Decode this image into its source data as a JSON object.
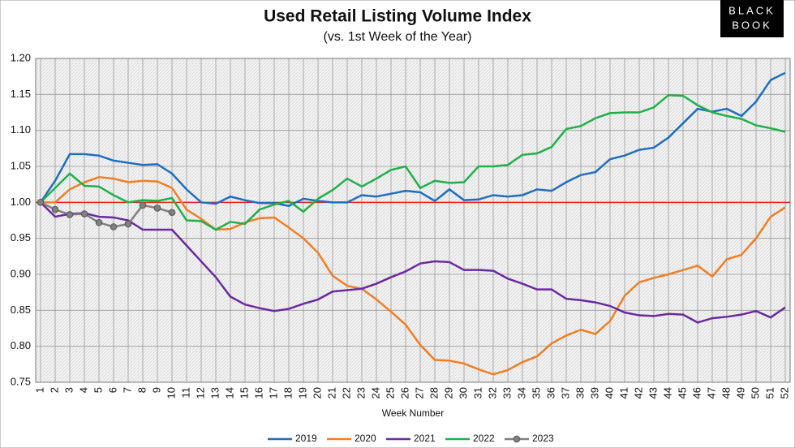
{
  "chart_data": {
    "type": "line",
    "title": "Used Retail Listing Volume Index",
    "subtitle": "(vs. 1st Week of the Year)",
    "logo": [
      "BLACK",
      "BOOK"
    ],
    "xlabel": "Week Number",
    "x": [
      1,
      2,
      3,
      4,
      5,
      6,
      7,
      8,
      9,
      10,
      11,
      12,
      13,
      14,
      15,
      16,
      17,
      18,
      19,
      20,
      21,
      22,
      23,
      24,
      25,
      26,
      27,
      28,
      29,
      30,
      31,
      32,
      33,
      34,
      35,
      36,
      37,
      38,
      39,
      40,
      41,
      42,
      43,
      44,
      45,
      46,
      47,
      48,
      49,
      50,
      51,
      52
    ],
    "xlim": [
      1,
      52
    ],
    "ylim": [
      0.75,
      1.2
    ],
    "yticks": [
      {
        "value": 0.75,
        "label": "0.75"
      },
      {
        "value": 0.8,
        "label": "0.80"
      },
      {
        "value": 0.85,
        "label": "0.85"
      },
      {
        "value": 0.9,
        "label": "0.90"
      },
      {
        "value": 0.95,
        "label": "0.95"
      },
      {
        "value": 1.0,
        "label": "1.00"
      },
      {
        "value": 1.05,
        "label": "1.05"
      },
      {
        "value": 1.1,
        "label": "1.10"
      },
      {
        "value": 1.15,
        "label": "1.15"
      },
      {
        "value": 1.2,
        "label": "1.20"
      }
    ],
    "grid": true,
    "reference_line": {
      "value": 1.0,
      "color": "#e8231f"
    },
    "legend": "bottom",
    "series": [
      {
        "name": "2019",
        "color": "#1f6fbf",
        "values": [
          1.0,
          1.03,
          1.067,
          1.067,
          1.065,
          1.058,
          1.055,
          1.052,
          1.053,
          1.04,
          1.018,
          1.0,
          0.998,
          1.008,
          1.003,
          0.999,
          0.999,
          0.995,
          1.005,
          1.002,
          1.0,
          1.0,
          1.01,
          1.008,
          1.012,
          1.016,
          1.014,
          1.002,
          1.018,
          1.003,
          1.004,
          1.01,
          1.008,
          1.01,
          1.018,
          1.016,
          1.028,
          1.038,
          1.042,
          1.06,
          1.065,
          1.073,
          1.076,
          1.09,
          1.11,
          1.13,
          1.126,
          1.13,
          1.12,
          1.14,
          1.17,
          1.18
        ]
      },
      {
        "name": "2020",
        "color": "#f07f24",
        "values": [
          1.0,
          1.0,
          1.018,
          1.028,
          1.035,
          1.033,
          1.028,
          1.03,
          1.029,
          1.02,
          0.99,
          0.977,
          0.962,
          0.963,
          0.972,
          0.978,
          0.979,
          0.965,
          0.95,
          0.93,
          0.898,
          0.884,
          0.88,
          0.865,
          0.848,
          0.83,
          0.802,
          0.781,
          0.78,
          0.776,
          0.768,
          0.761,
          0.767,
          0.778,
          0.786,
          0.804,
          0.815,
          0.823,
          0.817,
          0.835,
          0.87,
          0.889,
          0.895,
          0.9,
          0.906,
          0.912,
          0.897,
          0.921,
          0.927,
          0.95,
          0.98,
          0.993
        ]
      },
      {
        "name": "2021",
        "color": "#6a2aa0",
        "values": [
          1.0,
          0.98,
          0.984,
          0.985,
          0.98,
          0.979,
          0.975,
          0.962,
          0.962,
          0.962,
          0.94,
          0.918,
          0.896,
          0.869,
          0.858,
          0.853,
          0.849,
          0.852,
          0.859,
          0.865,
          0.876,
          0.878,
          0.88,
          0.887,
          0.896,
          0.904,
          0.915,
          0.918,
          0.917,
          0.906,
          0.906,
          0.905,
          0.894,
          0.887,
          0.879,
          0.879,
          0.866,
          0.864,
          0.861,
          0.856,
          0.847,
          0.843,
          0.842,
          0.845,
          0.844,
          0.833,
          0.839,
          0.841,
          0.844,
          0.849,
          0.84,
          0.854
        ]
      },
      {
        "name": "2022",
        "color": "#20b04b",
        "values": [
          1.0,
          1.02,
          1.04,
          1.023,
          1.022,
          1.01,
          1.0,
          1.003,
          1.002,
          1.006,
          0.975,
          0.974,
          0.962,
          0.973,
          0.97,
          0.99,
          0.997,
          1.002,
          0.987,
          1.005,
          1.017,
          1.033,
          1.022,
          1.033,
          1.045,
          1.05,
          1.02,
          1.03,
          1.027,
          1.028,
          1.05,
          1.05,
          1.052,
          1.066,
          1.068,
          1.077,
          1.102,
          1.106,
          1.117,
          1.124,
          1.125,
          1.125,
          1.132,
          1.149,
          1.148,
          1.135,
          1.125,
          1.12,
          1.116,
          1.107,
          1.103,
          1.098
        ]
      },
      {
        "name": "2023",
        "color": "#808080",
        "markers": true,
        "values": [
          1.0,
          0.99,
          0.983,
          0.984,
          0.972,
          0.966,
          0.97,
          0.996,
          0.992,
          0.986,
          null,
          null,
          null,
          null,
          null,
          null,
          null,
          null,
          null,
          null,
          null,
          null,
          null,
          null,
          null,
          null,
          null,
          null,
          null,
          null,
          null,
          null,
          null,
          null,
          null,
          null,
          null,
          null,
          null,
          null,
          null,
          null,
          null,
          null,
          null,
          null,
          null,
          null,
          null,
          null,
          null,
          null
        ]
      }
    ]
  }
}
